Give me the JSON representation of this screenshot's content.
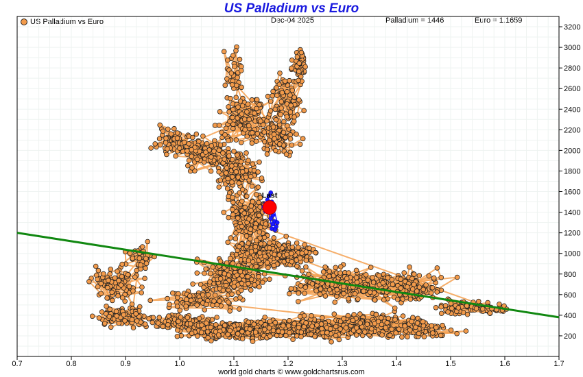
{
  "chart_data": {
    "type": "scatter",
    "title": "US Palladium vs Euro",
    "date": "Dec-04  2025",
    "readouts": {
      "palladium": "Palladium = 1446",
      "euro": "Euro = 1.1659"
    },
    "legend": "US Palladium vs Euro",
    "footer": "world gold charts © www.goldchartsrus.com",
    "xlim": [
      0.7,
      1.7
    ],
    "ylim": [
      0,
      3300
    ],
    "x_ticks": [
      "0.7",
      "0.8",
      "0.9",
      "1.0",
      "1.1",
      "1.2",
      "1.3",
      "1.4",
      "1.5",
      "1.6",
      "1.7"
    ],
    "y_ticks": [
      "200",
      "400",
      "600",
      "800",
      "1000",
      "1200",
      "1400",
      "1600",
      "1800",
      "2000",
      "2200",
      "2400",
      "2600",
      "2800",
      "3000",
      "3200"
    ],
    "x_tick_values": [
      0.7,
      0.8,
      0.9,
      1.0,
      1.1,
      1.2,
      1.3,
      1.4,
      1.5,
      1.6,
      1.7
    ],
    "y_tick_values": [
      200,
      400,
      600,
      800,
      1000,
      1200,
      1400,
      1600,
      1800,
      2000,
      2200,
      2400,
      2600,
      2800,
      3000,
      3200
    ],
    "trendline": {
      "x": [
        0.7,
        1.7
      ],
      "y": [
        1200,
        380
      ]
    },
    "last_point": {
      "x": 1.1659,
      "y": 1446,
      "label": "Last"
    },
    "recent_points": [
      [
        1.168,
        1590
      ],
      [
        1.165,
        1560
      ],
      [
        1.162,
        1520
      ],
      [
        1.17,
        1500
      ],
      [
        1.158,
        1480
      ],
      [
        1.155,
        1450
      ],
      [
        1.16,
        1420
      ],
      [
        1.166,
        1400
      ],
      [
        1.172,
        1370
      ],
      [
        1.168,
        1340
      ],
      [
        1.175,
        1310
      ],
      [
        1.172,
        1285
      ],
      [
        1.178,
        1260
      ],
      [
        1.17,
        1240
      ],
      [
        1.163,
        1455
      ],
      [
        1.158,
        1410
      ],
      [
        1.174,
        1430
      ],
      [
        1.18,
        1300
      ],
      [
        1.176,
        1230
      ]
    ],
    "clusters": [
      {
        "cx": 0.88,
        "cy": 700,
        "sx": 0.035,
        "sy": 110,
        "n": 90
      },
      {
        "cx": 0.93,
        "cy": 960,
        "sx": 0.02,
        "sy": 90,
        "n": 35
      },
      {
        "cx": 0.9,
        "cy": 380,
        "sx": 0.035,
        "sy": 60,
        "n": 90
      },
      {
        "cx": 1.0,
        "cy": 330,
        "sx": 0.04,
        "sy": 45,
        "n": 110
      },
      {
        "cx": 1.1,
        "cy": 250,
        "sx": 0.06,
        "sy": 60,
        "n": 220
      },
      {
        "cx": 1.22,
        "cy": 270,
        "sx": 0.07,
        "sy": 70,
        "n": 230
      },
      {
        "cx": 1.35,
        "cy": 300,
        "sx": 0.07,
        "sy": 80,
        "n": 200
      },
      {
        "cx": 1.45,
        "cy": 260,
        "sx": 0.04,
        "sy": 60,
        "n": 60
      },
      {
        "cx": 1.04,
        "cy": 560,
        "sx": 0.05,
        "sy": 80,
        "n": 80
      },
      {
        "cx": 1.1,
        "cy": 780,
        "sx": 0.05,
        "sy": 120,
        "n": 150
      },
      {
        "cx": 1.16,
        "cy": 1000,
        "sx": 0.05,
        "sy": 110,
        "n": 180
      },
      {
        "cx": 1.21,
        "cy": 1000,
        "sx": 0.03,
        "sy": 60,
        "n": 60
      },
      {
        "cx": 1.3,
        "cy": 700,
        "sx": 0.06,
        "sy": 110,
        "n": 200
      },
      {
        "cx": 1.42,
        "cy": 680,
        "sx": 0.05,
        "sy": 100,
        "n": 130
      },
      {
        "cx": 1.52,
        "cy": 480,
        "sx": 0.04,
        "sy": 60,
        "n": 60
      },
      {
        "cx": 1.58,
        "cy": 460,
        "sx": 0.025,
        "sy": 30,
        "n": 40
      },
      {
        "cx": 1.13,
        "cy": 1350,
        "sx": 0.03,
        "sy": 180,
        "n": 160
      },
      {
        "cx": 1.11,
        "cy": 1800,
        "sx": 0.025,
        "sy": 150,
        "n": 110
      },
      {
        "cx": 1.05,
        "cy": 1950,
        "sx": 0.035,
        "sy": 100,
        "n": 110
      },
      {
        "cx": 0.99,
        "cy": 2100,
        "sx": 0.025,
        "sy": 90,
        "n": 70
      },
      {
        "cx": 1.12,
        "cy": 2300,
        "sx": 0.03,
        "sy": 160,
        "n": 120
      },
      {
        "cx": 1.1,
        "cy": 2750,
        "sx": 0.015,
        "sy": 180,
        "n": 35
      },
      {
        "cx": 1.18,
        "cy": 2150,
        "sx": 0.025,
        "sy": 120,
        "n": 90
      },
      {
        "cx": 1.2,
        "cy": 2500,
        "sx": 0.02,
        "sy": 170,
        "n": 80
      },
      {
        "cx": 1.22,
        "cy": 2850,
        "sx": 0.012,
        "sy": 100,
        "n": 45
      }
    ]
  }
}
